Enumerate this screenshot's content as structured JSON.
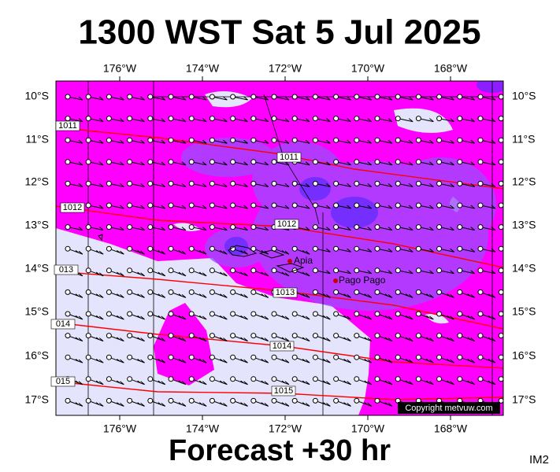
{
  "title": "1300 WST Sat 5 Jul 2025",
  "footer": "Forecast +30 hr",
  "corner_label": "IM2",
  "copyright": "Copyright metvuw.com",
  "map": {
    "lon_labels": [
      "176°W",
      "174°W",
      "172°W",
      "170°W",
      "168°W"
    ],
    "lat_labels": [
      "10°S",
      "11°S",
      "12°S",
      "13°S",
      "14°S",
      "15°S",
      "16°S",
      "17°S"
    ],
    "isobar_labels": [
      "1011",
      "1011",
      "1012",
      "1012",
      "013",
      "1013",
      "014",
      "1014",
      "015",
      "1015"
    ],
    "places": [
      "Apia",
      "Pago Pago"
    ]
  }
}
